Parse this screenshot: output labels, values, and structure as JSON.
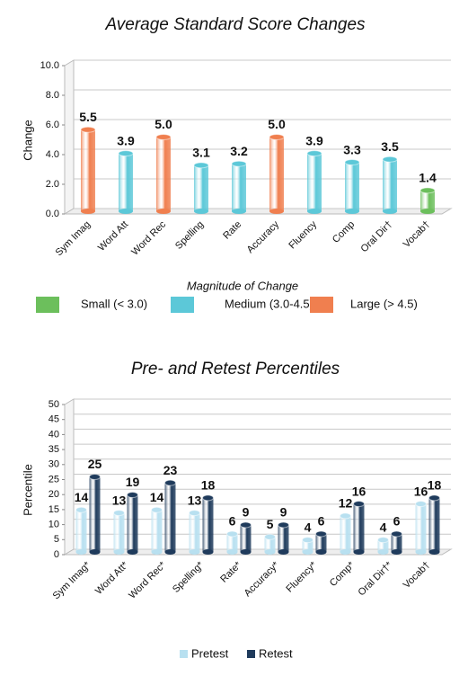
{
  "chart_data": [
    {
      "type": "bar",
      "title": "Average Standard Score Changes",
      "y_label": "Change",
      "categories": [
        "Sym Imag",
        "Word Att",
        "Word Rec",
        "Spelling",
        "Rate",
        "Accuracy",
        "Fluency",
        "Comp",
        "Oral Dir†",
        "Vocab†"
      ],
      "series": [
        {
          "values": [
            5.5,
            3.9,
            5.0,
            3.1,
            3.2,
            5.0,
            3.9,
            3.3,
            3.5,
            1.4
          ],
          "value_labels": [
            "5.5",
            "3.9",
            "5.0",
            "3.1",
            "3.2",
            "5.0",
            "3.9",
            "3.3",
            "3.5",
            "1.4"
          ],
          "colors": [
            "#f07f4f",
            "#5cc8d8",
            "#f07f4f",
            "#5cc8d8",
            "#5cc8d8",
            "#f07f4f",
            "#5cc8d8",
            "#5cc8d8",
            "#5cc8d8",
            "#6cbf5c"
          ]
        }
      ],
      "ylim": [
        0,
        10
      ],
      "yticks": [
        {
          "value": 0,
          "label": "0.0"
        },
        {
          "value": 2,
          "label": "2.0"
        },
        {
          "value": 4,
          "label": "4.0"
        },
        {
          "value": 6,
          "label": "6.0"
        },
        {
          "value": 8,
          "label": "8.0"
        },
        {
          "value": 10,
          "label": "10.0"
        }
      ],
      "grid": true,
      "legend": {
        "title": "Magnitude of Change",
        "items": [
          {
            "label": "Small (< 3.0)",
            "color": "#6cbf5c"
          },
          {
            "label": "Medium (3.0-4.5)",
            "color": "#5cc8d8"
          },
          {
            "label": "Large (> 4.5)",
            "color": "#f07f4f"
          }
        ]
      }
    },
    {
      "type": "bar",
      "title": "Pre- and Retest Percentiles",
      "y_label": "Percentile",
      "categories": [
        "Sym Imag*",
        "Word Att*",
        "Word Rec*",
        "Spelling*",
        "Rate*",
        "Accuracy*",
        "Fluency*",
        "Comp*",
        "Oral Dir†*",
        "Vocab†"
      ],
      "series": [
        {
          "name": "Pretest",
          "color": "#b8e0f0",
          "values": [
            14,
            13,
            14,
            13,
            6,
            5,
            4,
            12,
            4,
            16
          ]
        },
        {
          "name": "Retest",
          "color": "#1f3b5c",
          "values": [
            25,
            19,
            23,
            18,
            9,
            9,
            6,
            16,
            6,
            18
          ]
        }
      ],
      "ylim": [
        0,
        50
      ],
      "yticks": [
        0,
        5,
        10,
        15,
        20,
        25,
        30,
        35,
        40,
        45,
        50
      ],
      "grid": true
    }
  ]
}
